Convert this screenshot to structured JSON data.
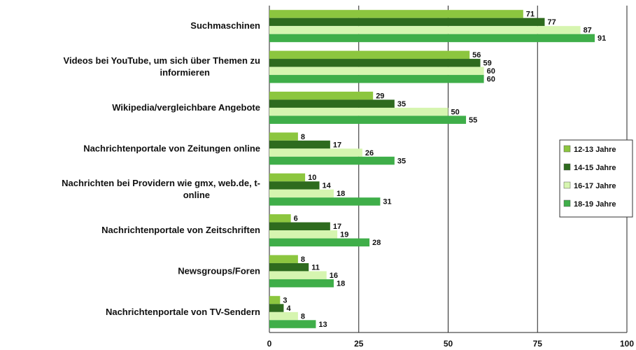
{
  "chart_data": {
    "type": "bar",
    "orientation": "horizontal",
    "categories": [
      [
        "Suchmaschinen"
      ],
      [
        "Videos bei YouTube, um sich über Themen zu",
        "informieren"
      ],
      [
        "Wikipedia/vergleichbare Angebote"
      ],
      [
        "Nachrichtenportale von Zeitungen online"
      ],
      [
        "Nachrichten bei Providern wie gmx, web.de, t-",
        "online"
      ],
      [
        "Nachrichtenportale von Zeitschriften"
      ],
      [
        "Newsgroups/Foren"
      ],
      [
        "Nachrichtenportale von TV-Sendern"
      ]
    ],
    "series": [
      {
        "name": "12-13 Jahre",
        "color": "#8cc63f",
        "values": [
          71,
          56,
          29,
          8,
          10,
          6,
          8,
          3
        ]
      },
      {
        "name": "14-15 Jahre",
        "color": "#2e6b1e",
        "values": [
          77,
          59,
          35,
          17,
          14,
          17,
          11,
          4
        ]
      },
      {
        "name": "16-17 Jahre",
        "color": "#d6f5b0",
        "values": [
          87,
          60,
          50,
          26,
          18,
          19,
          16,
          8
        ]
      },
      {
        "name": "18-19 Jahre",
        "color": "#3fae49",
        "values": [
          91,
          60,
          55,
          35,
          31,
          28,
          18,
          13
        ]
      }
    ],
    "xlim": [
      0,
      100
    ],
    "xticks": [
      "0",
      "25",
      "50",
      "75",
      "100"
    ],
    "grid": true,
    "legend_position": "right"
  }
}
